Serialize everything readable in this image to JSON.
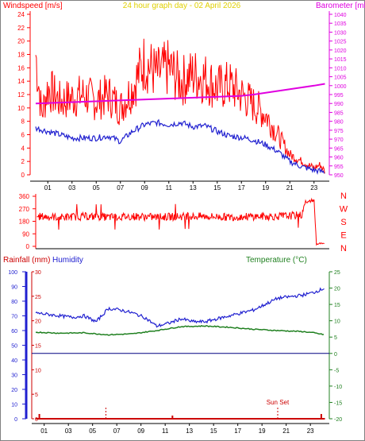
{
  "title": "24 hour graph day - 02 April 2026",
  "colors": {
    "wind": "#ff0000",
    "gust": "#ff0000",
    "baro": "#e000e0",
    "avgwind": "#2020d0",
    "humidity": "#2020d0",
    "rain": "#cc0000",
    "temperature": "#208020",
    "title": "#e0d000",
    "zeroline": "#000080"
  },
  "x_hours": [
    "01",
    "03",
    "05",
    "07",
    "09",
    "11",
    "13",
    "15",
    "17",
    "19",
    "21",
    "23"
  ],
  "chart_data": [
    {
      "type": "line",
      "ylabel": "Windspeed [m/s]",
      "ylabel_right": "Barometer [mb]",
      "ylim": [
        0,
        24
      ],
      "y_ticks": [
        "0",
        "2",
        "4",
        "6",
        "8",
        "10",
        "12",
        "14",
        "16",
        "18",
        "20",
        "22",
        "24"
      ],
      "ylim_right": [
        950,
        1040
      ],
      "y_ticks_right": [
        "950",
        "955",
        "960",
        "965",
        "970",
        "975",
        "980",
        "985",
        "990",
        "995",
        "1000",
        "1005",
        "1010",
        "1015",
        "1020",
        "1025",
        "1030",
        "1035",
        "1040"
      ],
      "series": [
        {
          "key": "gust",
          "axis": "left",
          "x": [
            0,
            0.5,
            1,
            2,
            3,
            4,
            5,
            6,
            7,
            8,
            9,
            10,
            11,
            12,
            13,
            14,
            15,
            16,
            17,
            18,
            19,
            20,
            21,
            22,
            22.5,
            23,
            23.5,
            23.9
          ],
          "values": [
            18,
            9,
            13,
            11,
            11.5,
            12,
            11,
            12,
            10,
            13,
            17,
            15,
            16,
            14,
            15,
            14.5,
            13,
            13.5,
            12,
            10.5,
            9,
            6,
            3,
            2,
            1.5,
            1,
            1.5,
            0.5
          ]
        },
        {
          "key": "avgwind",
          "axis": "left",
          "x": [
            0,
            1,
            2,
            3,
            4,
            5,
            6,
            7,
            8,
            9,
            10,
            11,
            12,
            13,
            14,
            15,
            16,
            17,
            18,
            19,
            20,
            21,
            22,
            23,
            23.9
          ],
          "values": [
            7,
            6.5,
            6,
            5.5,
            5.5,
            5.5,
            5.8,
            5,
            6.5,
            7.5,
            7.8,
            7.5,
            7.8,
            7.2,
            7.3,
            6.5,
            5.8,
            5.6,
            5.2,
            4.5,
            3.5,
            2,
            1.2,
            0.7,
            0.4
          ]
        },
        {
          "key": "baro",
          "axis": "right",
          "x": [
            0,
            2,
            4,
            6,
            8,
            10,
            12,
            14,
            16,
            17,
            18,
            19,
            20,
            21,
            22,
            23,
            23.9
          ],
          "values": [
            990,
            990.5,
            991,
            991.5,
            992,
            992.5,
            993,
            993.5,
            994,
            994.3,
            995,
            996,
            997,
            998,
            999,
            1000,
            1001
          ]
        }
      ]
    },
    {
      "type": "line",
      "ylabel": "",
      "ylim": [
        0,
        360
      ],
      "y_ticks": [
        "0",
        "90",
        "180",
        "270",
        "360"
      ],
      "compass": [
        "N",
        "W",
        "S",
        "E",
        "N"
      ],
      "series": [
        {
          "key": "direction",
          "x": [
            0,
            2,
            4,
            6,
            8,
            10,
            12,
            14,
            16,
            18,
            20,
            21,
            22,
            22.3,
            22.5,
            22.8,
            23,
            23.2,
            23.5,
            23.9
          ],
          "values": [
            215,
            210,
            215,
            210,
            215,
            210,
            215,
            215,
            210,
            215,
            215,
            220,
            225,
            330,
            315,
            330,
            330,
            15,
            20,
            15
          ]
        }
      ]
    },
    {
      "type": "line",
      "ylabel": "Humidity",
      "ylabel_rain": "Rainfall (mm)",
      "ylabel_right": "Temperature (°C)",
      "ylim": [
        0,
        100
      ],
      "y_ticks_hum": [
        "0",
        "10",
        "20",
        "30",
        "40",
        "50",
        "60",
        "70",
        "80",
        "90",
        "100"
      ],
      "y_ticks_rain": [
        "0",
        "5",
        "10",
        "15",
        "20",
        "25",
        "30"
      ],
      "ylim_right": [
        -20,
        25
      ],
      "y_ticks_right": [
        "-20",
        "-15",
        "-10",
        "-5",
        "0",
        "5",
        "10",
        "15",
        "20",
        "25"
      ],
      "annotation": "Sun Set",
      "series": [
        {
          "key": "humidity",
          "axis": "left",
          "x": [
            0,
            1,
            2,
            3,
            4,
            5,
            6,
            7,
            8,
            9,
            10,
            11,
            12,
            13,
            14,
            15,
            16,
            17,
            18,
            19,
            20,
            21,
            22,
            23,
            23.9
          ],
          "values": [
            72,
            71,
            70,
            69,
            70,
            66,
            75,
            74,
            72,
            69,
            63,
            65,
            68,
            66,
            66,
            68,
            70,
            72,
            74,
            78,
            82,
            83,
            84,
            86,
            89
          ]
        },
        {
          "key": "temperature",
          "axis": "right",
          "x": [
            0,
            2,
            4,
            6,
            8,
            10,
            12,
            14,
            16,
            18,
            20,
            22,
            23,
            23.9
          ],
          "values": [
            6.5,
            6.2,
            6.3,
            5.7,
            6.0,
            7.0,
            8.2,
            8.4,
            8.0,
            7.4,
            7.0,
            6.7,
            6.3,
            5.7
          ]
        },
        {
          "key": "rain",
          "axis": "rain",
          "x": [
            0,
            0.3,
            23.6,
            23.9
          ],
          "values": [
            0,
            0,
            0,
            0
          ]
        }
      ]
    }
  ]
}
